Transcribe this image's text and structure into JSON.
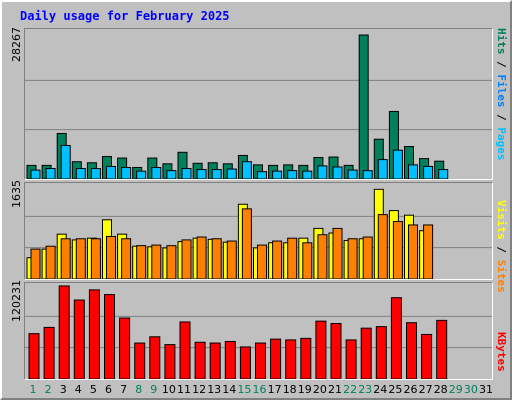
{
  "title": "Daily usage for February 2025",
  "colors": {
    "hits": "#00805c",
    "files": "#00c0ff",
    "pages": "#00c0ff",
    "visits": "#ffff00",
    "sites": "#ff8000",
    "kbytes": "#ff0000",
    "weekday": "#000000",
    "weekend": "#00805c"
  },
  "legend": {
    "hits_files_pages": [
      {
        "text": "Hits",
        "color": "#00805c"
      },
      {
        "text": " / ",
        "color": "#000000"
      },
      {
        "text": "Files",
        "color": "#0080ff"
      },
      {
        "text": " / ",
        "color": "#000000"
      },
      {
        "text": "Pages",
        "color": "#00c0ff"
      }
    ],
    "visits_sites": [
      {
        "text": "Visits",
        "color": "#ffff00"
      },
      {
        "text": " / ",
        "color": "#000000"
      },
      {
        "text": "Sites",
        "color": "#ff8000"
      }
    ],
    "kbytes": [
      {
        "text": "KBytes",
        "color": "#ff0000"
      }
    ]
  },
  "chart_data": {
    "type": "bar",
    "title": "Daily usage for February 2025",
    "days": [
      1,
      2,
      3,
      4,
      5,
      6,
      7,
      8,
      9,
      10,
      11,
      12,
      13,
      14,
      15,
      16,
      17,
      18,
      19,
      20,
      21,
      22,
      23,
      24,
      25,
      26,
      27,
      28,
      29,
      30,
      31
    ],
    "weekend_days": [
      1,
      2,
      8,
      9,
      15,
      16,
      22,
      23,
      29,
      30
    ],
    "panels": [
      {
        "name": "hits_files_pages",
        "ymax": 28267,
        "series": [
          {
            "name": "Hits",
            "values": [
              2600,
              2600,
              8700,
              3300,
              3100,
              4300,
              4000,
              2200,
              4000,
              2900,
              5100,
              3000,
              3100,
              2900,
              4500,
              2700,
              2600,
              2700,
              2600,
              4100,
              4200,
              2600,
              27500,
              7600,
              12900,
              6200,
              3900,
              3400,
              0,
              0,
              0
            ]
          },
          {
            "name": "Files",
            "values": [
              1700,
              2000,
              6400,
              2000,
              2000,
              2400,
              2200,
              1500,
              2200,
              1600,
              2000,
              1800,
              1800,
              1900,
              3300,
              1400,
              1500,
              1600,
              1500,
              2500,
              2300,
              1700,
              1600,
              3700,
              5500,
              2700,
              2400,
              1800,
              0,
              0,
              0
            ]
          }
        ]
      },
      {
        "name": "visits_sites",
        "ymax": 1635,
        "series": [
          {
            "name": "Visits",
            "values": [
              370,
              520,
              780,
              680,
              710,
              1030,
              780,
              570,
              560,
              540,
              650,
              710,
              690,
              640,
              1300,
              540,
              630,
              630,
              710,
              880,
              800,
              670,
              700,
              1560,
              1190,
              1110,
              840,
              0,
              0,
              0,
              0
            ]
          },
          {
            "name": "Sites",
            "values": [
              520,
              570,
              700,
              700,
              700,
              740,
              700,
              580,
              590,
              580,
              680,
              730,
              700,
              660,
              1220,
              590,
              660,
              710,
              630,
              770,
              880,
              700,
              730,
              1120,
              1000,
              940,
              940,
              0,
              0,
              0,
              0
            ]
          }
        ]
      },
      {
        "name": "kbytes",
        "ymax": 120231,
        "series": [
          {
            "name": "KBytes",
            "values": [
              58000,
              66000,
              119000,
              101000,
              114000,
              108000,
              78000,
              46000,
              54000,
              44000,
              73000,
              47000,
              46000,
              48000,
              41000,
              46000,
              51000,
              50000,
              52000,
              74000,
              71000,
              50000,
              65000,
              67000,
              104000,
              72000,
              57000,
              75000,
              0,
              0,
              0
            ]
          }
        ]
      }
    ]
  }
}
